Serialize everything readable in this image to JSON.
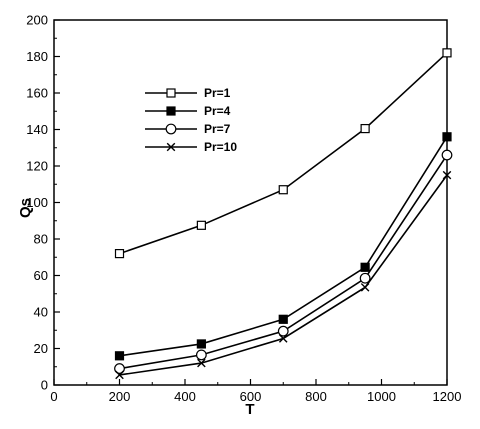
{
  "chart_data": {
    "type": "line",
    "title": "",
    "xlabel": "T",
    "ylabel": "Qs",
    "xlim": [
      0,
      1200
    ],
    "ylim": [
      0,
      200
    ],
    "xticks": [
      0,
      200,
      400,
      600,
      800,
      1000,
      1200
    ],
    "yticks": [
      0,
      20,
      40,
      60,
      80,
      100,
      120,
      140,
      160,
      180,
      200
    ],
    "grid": false,
    "legend_position": "upper-left",
    "x": [
      200,
      450,
      700,
      950,
      1200
    ],
    "series": [
      {
        "name": "Pr=1",
        "marker": "open-square",
        "color": "#000000",
        "values": [
          72,
          87.5,
          107,
          140.5,
          182
        ]
      },
      {
        "name": "Pr=4",
        "marker": "filled-square",
        "color": "#000000",
        "values": [
          16,
          22.5,
          36,
          64.5,
          136
        ]
      },
      {
        "name": "Pr=7",
        "marker": "open-circle",
        "color": "#000000",
        "values": [
          9,
          16.5,
          29.5,
          58.5,
          126
        ]
      },
      {
        "name": "Pr=10",
        "marker": "x",
        "color": "#000000",
        "values": [
          5.5,
          12,
          25.5,
          53.5,
          115
        ]
      }
    ]
  }
}
